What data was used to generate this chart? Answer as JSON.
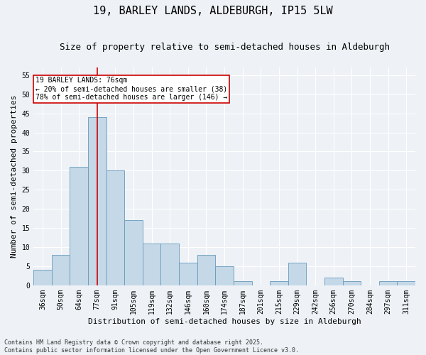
{
  "title": "19, BARLEY LANDS, ALDEBURGH, IP15 5LW",
  "subtitle": "Size of property relative to semi-detached houses in Aldeburgh",
  "xlabel": "Distribution of semi-detached houses by size in Aldeburgh",
  "ylabel": "Number of semi-detached properties",
  "categories": [
    "36sqm",
    "50sqm",
    "64sqm",
    "77sqm",
    "91sqm",
    "105sqm",
    "119sqm",
    "132sqm",
    "146sqm",
    "160sqm",
    "174sqm",
    "187sqm",
    "201sqm",
    "215sqm",
    "229sqm",
    "242sqm",
    "256sqm",
    "270sqm",
    "284sqm",
    "297sqm",
    "311sqm"
  ],
  "values": [
    4,
    8,
    31,
    44,
    30,
    17,
    11,
    11,
    6,
    8,
    5,
    1,
    0,
    1,
    6,
    0,
    2,
    1,
    0,
    1,
    1
  ],
  "bar_color": "#c5d8e8",
  "bar_edge_color": "#6699bb",
  "vline_x": 3,
  "vline_color": "#cc0000",
  "annotation_line1": "19 BARLEY LANDS: 76sqm",
  "annotation_line2": "← 20% of semi-detached houses are smaller (38)",
  "annotation_line3": "78% of semi-detached houses are larger (146) →",
  "annotation_box_color": "#ffffff",
  "annotation_box_edge": "#cc0000",
  "ylim": [
    0,
    57
  ],
  "yticks": [
    0,
    5,
    10,
    15,
    20,
    25,
    30,
    35,
    40,
    45,
    50,
    55
  ],
  "footnote": "Contains HM Land Registry data © Crown copyright and database right 2025.\nContains public sector information licensed under the Open Government Licence v3.0.",
  "background_color": "#eef2f6",
  "grid_color": "#ffffff",
  "title_fontsize": 11,
  "subtitle_fontsize": 9,
  "axis_label_fontsize": 8,
  "tick_fontsize": 7,
  "annotation_fontsize": 7,
  "footnote_fontsize": 6
}
